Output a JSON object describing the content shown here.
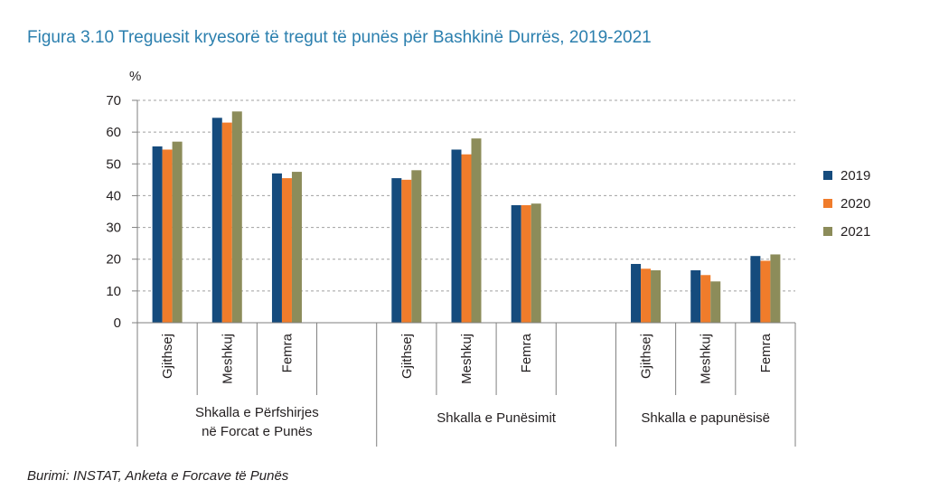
{
  "figure": {
    "title": "Figura 3.10 Treguesit kryesorë të tregut të punës për Bashkinë Durrës, 2019-2021",
    "source": "Burimi: INSTAT, Anketa e Forcave të Punës"
  },
  "chart_data": {
    "type": "bar",
    "ylabel": "%",
    "ylim": [
      0,
      70
    ],
    "yticks": [
      0,
      10,
      20,
      30,
      40,
      50,
      60,
      70
    ],
    "grid": true,
    "legend_position": "right",
    "colors": [
      "#154b7d",
      "#f07c2b",
      "#8c8c5a"
    ],
    "groups": [
      {
        "label_lines": [
          "Shkalla e Përfshirjes",
          "në Forcat e Punës"
        ],
        "categories": [
          "Gjithsej",
          "Meshkuj",
          "Femra"
        ]
      },
      {
        "label_lines": [
          "Shkalla e Punësimit"
        ],
        "categories": [
          "Gjithsej",
          "Meshkuj",
          "Femra"
        ]
      },
      {
        "label_lines": [
          "Shkalla e papunësisë"
        ],
        "categories": [
          "Gjithsej",
          "Meshkuj",
          "Femra"
        ]
      }
    ],
    "series": [
      {
        "name": "2019",
        "values": [
          55.5,
          64.5,
          47.0,
          45.5,
          54.5,
          37.0,
          18.5,
          16.5,
          21.0
        ]
      },
      {
        "name": "2020",
        "values": [
          54.5,
          63.0,
          45.5,
          45.0,
          53.0,
          37.0,
          17.0,
          15.0,
          19.5
        ]
      },
      {
        "name": "2021",
        "values": [
          57.0,
          66.5,
          47.5,
          48.0,
          58.0,
          37.5,
          16.5,
          13.0,
          21.5
        ]
      }
    ]
  }
}
